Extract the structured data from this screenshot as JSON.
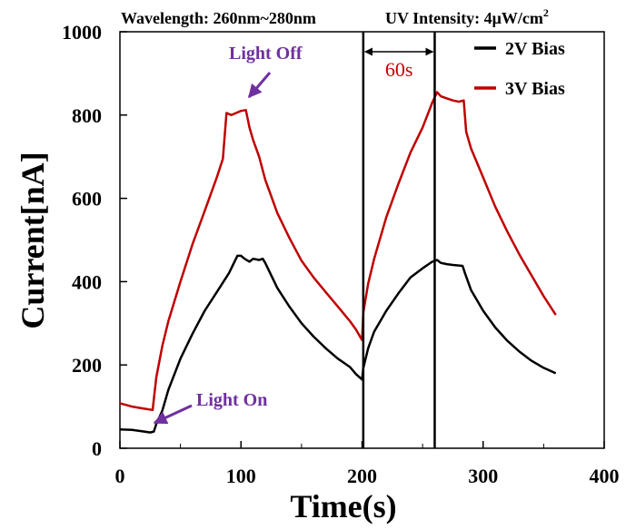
{
  "chart_data": {
    "type": "line",
    "header": {
      "left": "Wavelength: 260nm~280nm",
      "right_prefix": "UV Intensity: 4μW/cm",
      "right_sup": "2"
    },
    "xlabel": "Time(s)",
    "ylabel": "Current[nA]",
    "xlim": [
      0,
      400
    ],
    "ylim": [
      0,
      1000
    ],
    "xticks": [
      0,
      100,
      200,
      300,
      400
    ],
    "yticks": [
      0,
      200,
      400,
      600,
      800,
      1000
    ],
    "grid": false,
    "legend_position": "top-right",
    "series": [
      {
        "name": "2V Bias",
        "color": "#000000",
        "points": [
          [
            0,
            45
          ],
          [
            10,
            44
          ],
          [
            20,
            40
          ],
          [
            25,
            38
          ],
          [
            28,
            40
          ],
          [
            30,
            58
          ],
          [
            35,
            90
          ],
          [
            40,
            140
          ],
          [
            50,
            215
          ],
          [
            60,
            275
          ],
          [
            70,
            330
          ],
          [
            80,
            375
          ],
          [
            90,
            420
          ],
          [
            97,
            462
          ],
          [
            100,
            462
          ],
          [
            103,
            455
          ],
          [
            107,
            448
          ],
          [
            110,
            455
          ],
          [
            115,
            452
          ],
          [
            118,
            455
          ],
          [
            120,
            445
          ],
          [
            130,
            385
          ],
          [
            140,
            340
          ],
          [
            150,
            300
          ],
          [
            160,
            268
          ],
          [
            170,
            240
          ],
          [
            180,
            215
          ],
          [
            190,
            195
          ],
          [
            195,
            178
          ],
          [
            200,
            165
          ],
          [
            201,
            192
          ],
          [
            205,
            240
          ],
          [
            210,
            280
          ],
          [
            220,
            330
          ],
          [
            230,
            372
          ],
          [
            240,
            410
          ],
          [
            250,
            432
          ],
          [
            258,
            448
          ],
          [
            262,
            452
          ],
          [
            265,
            445
          ],
          [
            270,
            442
          ],
          [
            275,
            440
          ],
          [
            283,
            438
          ],
          [
            285,
            420
          ],
          [
            290,
            380
          ],
          [
            300,
            330
          ],
          [
            310,
            290
          ],
          [
            320,
            258
          ],
          [
            330,
            232
          ],
          [
            340,
            210
          ],
          [
            350,
            193
          ],
          [
            360,
            180
          ]
        ]
      },
      {
        "name": "3V Bias",
        "color": "#c00000",
        "points": [
          [
            0,
            108
          ],
          [
            10,
            100
          ],
          [
            20,
            95
          ],
          [
            27,
            92
          ],
          [
            30,
            170
          ],
          [
            35,
            245
          ],
          [
            40,
            305
          ],
          [
            50,
            400
          ],
          [
            60,
            490
          ],
          [
            70,
            570
          ],
          [
            80,
            650
          ],
          [
            85,
            695
          ],
          [
            88,
            805
          ],
          [
            92,
            800
          ],
          [
            96,
            805
          ],
          [
            100,
            810
          ],
          [
            104,
            812
          ],
          [
            107,
            770
          ],
          [
            110,
            740
          ],
          [
            115,
            700
          ],
          [
            120,
            645
          ],
          [
            130,
            565
          ],
          [
            140,
            505
          ],
          [
            150,
            450
          ],
          [
            160,
            410
          ],
          [
            170,
            375
          ],
          [
            180,
            340
          ],
          [
            190,
            305
          ],
          [
            195,
            285
          ],
          [
            200,
            260
          ],
          [
            201,
            325
          ],
          [
            205,
            395
          ],
          [
            210,
            455
          ],
          [
            220,
            555
          ],
          [
            230,
            635
          ],
          [
            240,
            710
          ],
          [
            250,
            770
          ],
          [
            258,
            830
          ],
          [
            262,
            855
          ],
          [
            265,
            845
          ],
          [
            270,
            840
          ],
          [
            275,
            835
          ],
          [
            280,
            832
          ],
          [
            284,
            835
          ],
          [
            286,
            760
          ],
          [
            290,
            720
          ],
          [
            300,
            650
          ],
          [
            310,
            580
          ],
          [
            320,
            520
          ],
          [
            330,
            465
          ],
          [
            340,
            415
          ],
          [
            350,
            365
          ],
          [
            360,
            320
          ]
        ]
      }
    ],
    "markers": {
      "vertical_lines": [
        201,
        260
      ],
      "period_label": "60s"
    },
    "annotations": {
      "light_off": "Light Off",
      "light_on": "Light On",
      "color": "#7030a0"
    }
  }
}
